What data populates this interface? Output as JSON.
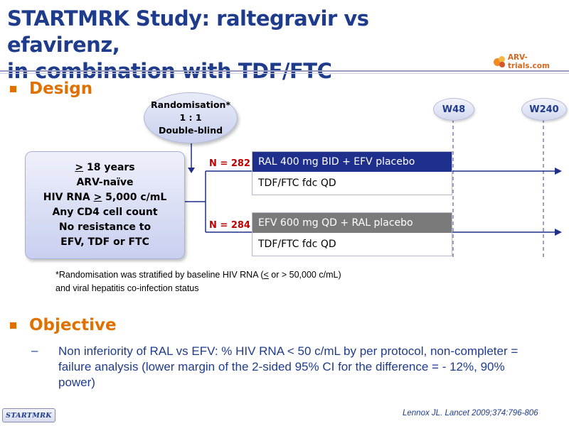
{
  "title": {
    "line1": "STARTMRK Study: raltegravir vs efavirenz,",
    "line2": "in combination with TDF/FTC"
  },
  "logo": {
    "text": "ARV-trials.com"
  },
  "design": {
    "label": "Design",
    "randomisation": {
      "line1": "Randomisation*",
      "line2": "1 : 1",
      "line3": "Double-blind"
    },
    "criteria": {
      "age_sym": ">",
      "age_rest": " 18 years",
      "line2": "ARV-naïve",
      "rna_pre": "HIV RNA ",
      "rna_sym": ">",
      "rna_post": " 5,000 c/mL",
      "line4": "Any CD4 cell count",
      "line5": "No resistance to",
      "line6": "EFV, TDF or FTC"
    },
    "arms": [
      {
        "n": "N = 282",
        "regimen": "RAL 400 mg BID + EFV placebo",
        "backbone": "TDF/FTC fdc QD",
        "color": "#1f2f8c"
      },
      {
        "n": "N = 284",
        "regimen": "EFV 600 mg QD + RAL placebo",
        "backbone": "TDF/FTC fdc QD",
        "color": "#7a7a7a"
      }
    ],
    "weeks": [
      "W48",
      "W240"
    ],
    "footnote": {
      "pre": "*Randomisation was stratified by baseline HIV RNA (",
      "sym": "<",
      "post": " or > 50,000 c/mL)",
      "line2": "and viral hepatitis co-infection status"
    }
  },
  "objective": {
    "label": "Objective",
    "dash": "–",
    "text": "Non inferiority of RAL vs EFV: % HIV RNA < 50 c/mL by per protocol, non-completer = failure analysis (lower margin of the 2-sided 95% CI for the difference =  - 12%, 90% power)"
  },
  "reference": "Lennox JL. Lancet 2009;374:796-806",
  "badge": "STARTMRK",
  "colors": {
    "title": "#1f3c8c",
    "accent": "#e07000",
    "n_label": "#c00000"
  }
}
